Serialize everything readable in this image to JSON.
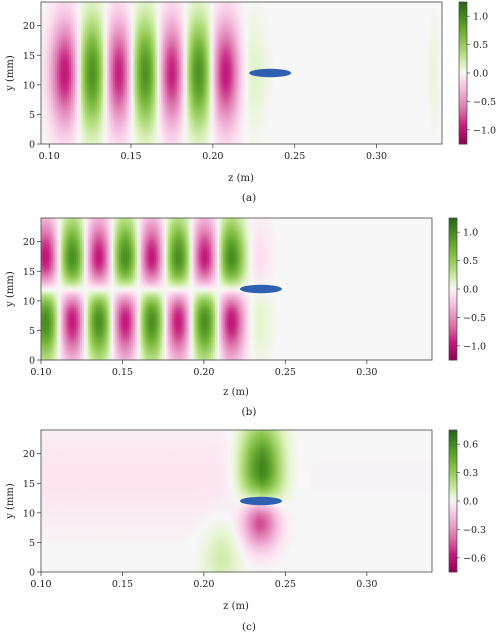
{
  "figure": {
    "panels": [
      {
        "caption": "(a)",
        "xlabel": "z (m)",
        "ylabel": "y (mm)"
      },
      {
        "caption": "(b)",
        "xlabel": "z (m)",
        "ylabel": "y (mm)"
      },
      {
        "caption": "(c)",
        "xlabel": "z (m)",
        "ylabel": "y (mm)"
      }
    ]
  },
  "chart_data": [
    {
      "type": "heatmap",
      "caption": "(a)",
      "xlabel": "z (m)",
      "ylabel": "y (mm)",
      "xlim": [
        0.095,
        0.34
      ],
      "ylim": [
        0,
        24
      ],
      "x_ticks": [
        "0.10",
        "0.15",
        "0.20",
        "0.25",
        "0.30"
      ],
      "x_tick_values": [
        0.1,
        0.15,
        0.2,
        0.25,
        0.3
      ],
      "y_ticks": [
        "0",
        "5",
        "10",
        "15",
        "20"
      ],
      "y_tick_values": [
        0,
        5,
        10,
        15,
        20
      ],
      "colorbar": {
        "min": -1.25,
        "max": 1.25,
        "ticks": [
          "1.0",
          "0.5",
          "0.0",
          "−0.5",
          "−1.0"
        ],
        "tick_values": [
          1.0,
          0.5,
          0.0,
          -0.5,
          -1.0
        ],
        "colormap": "PiYG",
        "negative_color": "#c51b7d",
        "positive_color": "#276419"
      },
      "field": {
        "pattern": "symmetric",
        "amplitude": 1.0,
        "period_m": 0.0325,
        "first_peak_z": 0.11,
        "first_peak_sign": -1,
        "center_y_mm": 12,
        "width_y_mm": 6.0,
        "lobe_width_z_m": 0.0062,
        "tail_start_z": 0.215,
        "tail_length_m": 0.02,
        "faint_column_z": 0.335
      },
      "probe": {
        "z": 0.235,
        "y": 12,
        "color": "#2f5fb0"
      }
    },
    {
      "type": "heatmap",
      "caption": "(b)",
      "xlabel": "z (m)",
      "ylabel": "y (mm)",
      "xlim": [
        0.1,
        0.34
      ],
      "ylim": [
        0,
        24
      ],
      "x_ticks": [
        "0.10",
        "0.15",
        "0.20",
        "0.25",
        "0.30"
      ],
      "x_tick_values": [
        0.1,
        0.15,
        0.2,
        0.25,
        0.3
      ],
      "y_ticks": [
        "0",
        "5",
        "10",
        "15",
        "20"
      ],
      "y_tick_values": [
        0,
        5,
        10,
        15,
        20
      ],
      "colorbar": {
        "min": -1.25,
        "max": 1.25,
        "ticks": [
          "1.0",
          "0.5",
          "0.0",
          "−0.5",
          "−1.0"
        ],
        "tick_values": [
          1.0,
          0.5,
          0.0,
          -0.5,
          -1.0
        ],
        "colormap": "PiYG",
        "negative_color": "#c51b7d",
        "positive_color": "#276419"
      },
      "field": {
        "pattern": "antisymmetric",
        "amplitude": 1.0,
        "period_m": 0.0325,
        "first_peak_z": 0.103,
        "first_peak_sign": -1,
        "center_y_mm": 12,
        "width_y_mm": 5.5,
        "lobe_width_z_m": 0.0058,
        "tail_start_z": 0.222,
        "tail_length_m": 0.022
      },
      "probe": {
        "z": 0.235,
        "y": 12,
        "color": "#2f5fb0"
      }
    },
    {
      "type": "heatmap",
      "caption": "(c)",
      "xlabel": "z (m)",
      "ylabel": "y (mm)",
      "xlim": [
        0.1,
        0.34
      ],
      "ylim": [
        0,
        24
      ],
      "x_ticks": [
        "0.10",
        "0.15",
        "0.20",
        "0.25",
        "0.30"
      ],
      "x_tick_values": [
        0.1,
        0.15,
        0.2,
        0.25,
        0.3
      ],
      "y_ticks": [
        "0",
        "5",
        "10",
        "15",
        "20"
      ],
      "y_tick_values": [
        0,
        5,
        10,
        15,
        20
      ],
      "colorbar": {
        "min": -0.75,
        "max": 0.75,
        "ticks": [
          "0.6",
          "0.3",
          "0.0",
          "−0.3",
          "−0.6"
        ],
        "tick_values": [
          0.6,
          0.3,
          0.0,
          -0.3,
          -0.6
        ],
        "colormap": "PiYG",
        "negative_color": "#c51b7d",
        "positive_color": "#276419"
      },
      "field": {
        "pattern": "dipole",
        "center_z": 0.235,
        "center_y_mm": 12,
        "upper_lobe": {
          "z": 0.235,
          "y": 17,
          "value": 0.65,
          "width_z_m": 0.0085,
          "width_y_mm": 5.5
        },
        "lower_lobe": {
          "z": 0.235,
          "y": 9,
          "value": -0.65,
          "width_z_m": 0.0075,
          "width_y_mm": 3.2
        },
        "lower_left_lobe": {
          "z": 0.211,
          "y": 2.5,
          "value": 0.12,
          "width_z_m": 0.008,
          "width_y_mm": 4.0
        },
        "background_wash": {
          "value": -0.05
        }
      },
      "probe": {
        "z": 0.235,
        "y": 12,
        "color": "#2f5fb0"
      }
    }
  ]
}
